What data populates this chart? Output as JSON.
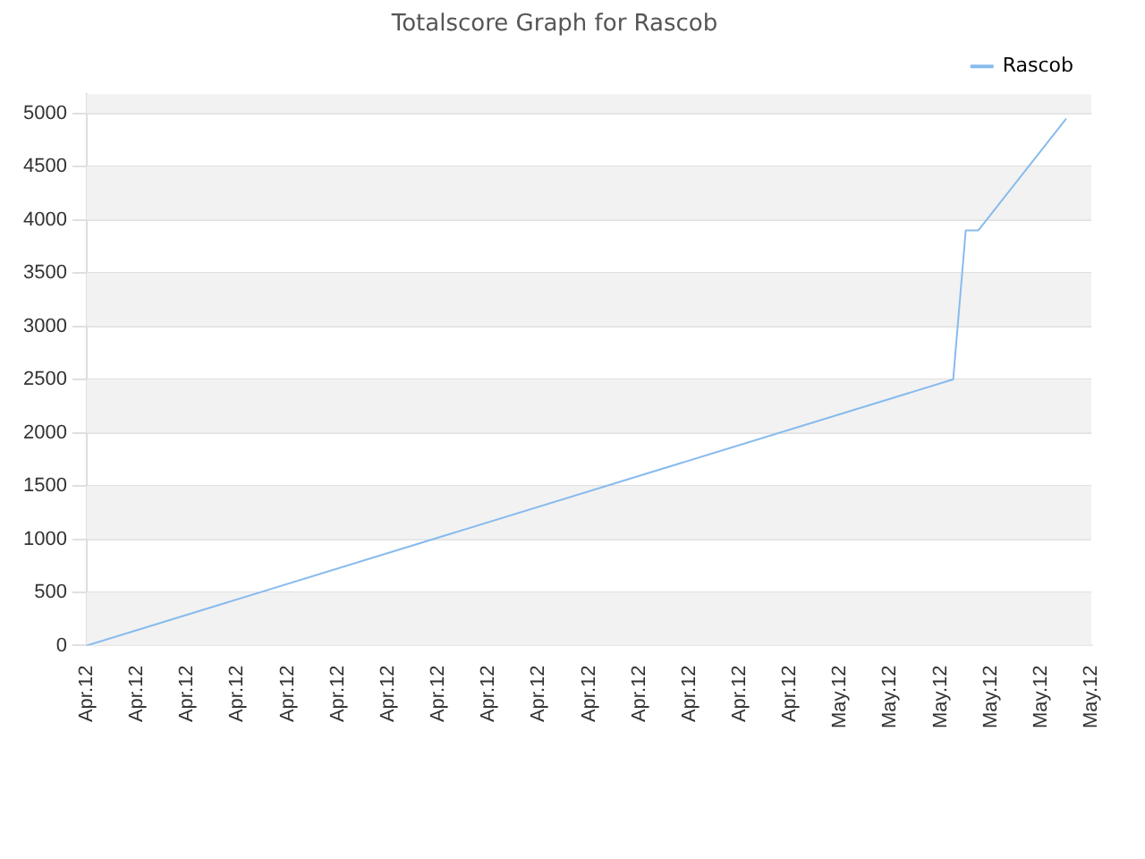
{
  "chart_data": {
    "type": "line",
    "title": "Totalscore Graph for Rascob",
    "categories": [
      "Apr.12",
      null,
      null,
      null,
      "Apr.12",
      null,
      null,
      null,
      "Apr.12",
      null,
      null,
      null,
      "Apr.12",
      null,
      null,
      null,
      "Apr.12",
      null,
      null,
      null,
      "Apr.12",
      null,
      null,
      null,
      "Apr.12",
      null,
      null,
      null,
      "Apr.12",
      null,
      null,
      null,
      "Apr.12",
      null,
      null,
      null,
      "Apr.12",
      null,
      null,
      null,
      "Apr.12",
      null,
      null,
      null,
      "Apr.12",
      null,
      null,
      null,
      "Apr.12",
      null,
      null,
      null,
      "Apr.12",
      null,
      null,
      null,
      "Apr.12",
      null,
      null,
      null,
      "May.12",
      null,
      null,
      null,
      "May.12",
      null,
      null,
      null,
      "May.12",
      null,
      null,
      null,
      "May.12",
      null,
      null,
      null,
      "May.12",
      null,
      null,
      null,
      "May.12"
    ],
    "series": [
      {
        "name": "Rascob",
        "color": "#88bbee",
        "values": [
          0,
          null,
          null,
          null,
          null,
          null,
          null,
          null,
          null,
          null,
          null,
          null,
          null,
          null,
          null,
          null,
          null,
          null,
          null,
          null,
          null,
          null,
          null,
          null,
          null,
          null,
          null,
          null,
          null,
          null,
          null,
          null,
          null,
          null,
          null,
          null,
          null,
          null,
          null,
          null,
          null,
          null,
          null,
          null,
          null,
          null,
          null,
          null,
          null,
          null,
          null,
          null,
          null,
          null,
          null,
          null,
          null,
          null,
          null,
          null,
          null,
          null,
          null,
          null,
          null,
          null,
          null,
          null,
          null,
          2500,
          3900,
          3900,
          null,
          null,
          null,
          null,
          null,
          null,
          4950,
          null,
          null
        ]
      }
    ],
    "ylim": [
      0,
      5180
    ],
    "yticks": [
      0,
      500,
      1000,
      1500,
      2000,
      2500,
      3000,
      3500,
      4000,
      4500,
      5000
    ],
    "grid": "y",
    "legend": "top right",
    "marker": "none"
  }
}
